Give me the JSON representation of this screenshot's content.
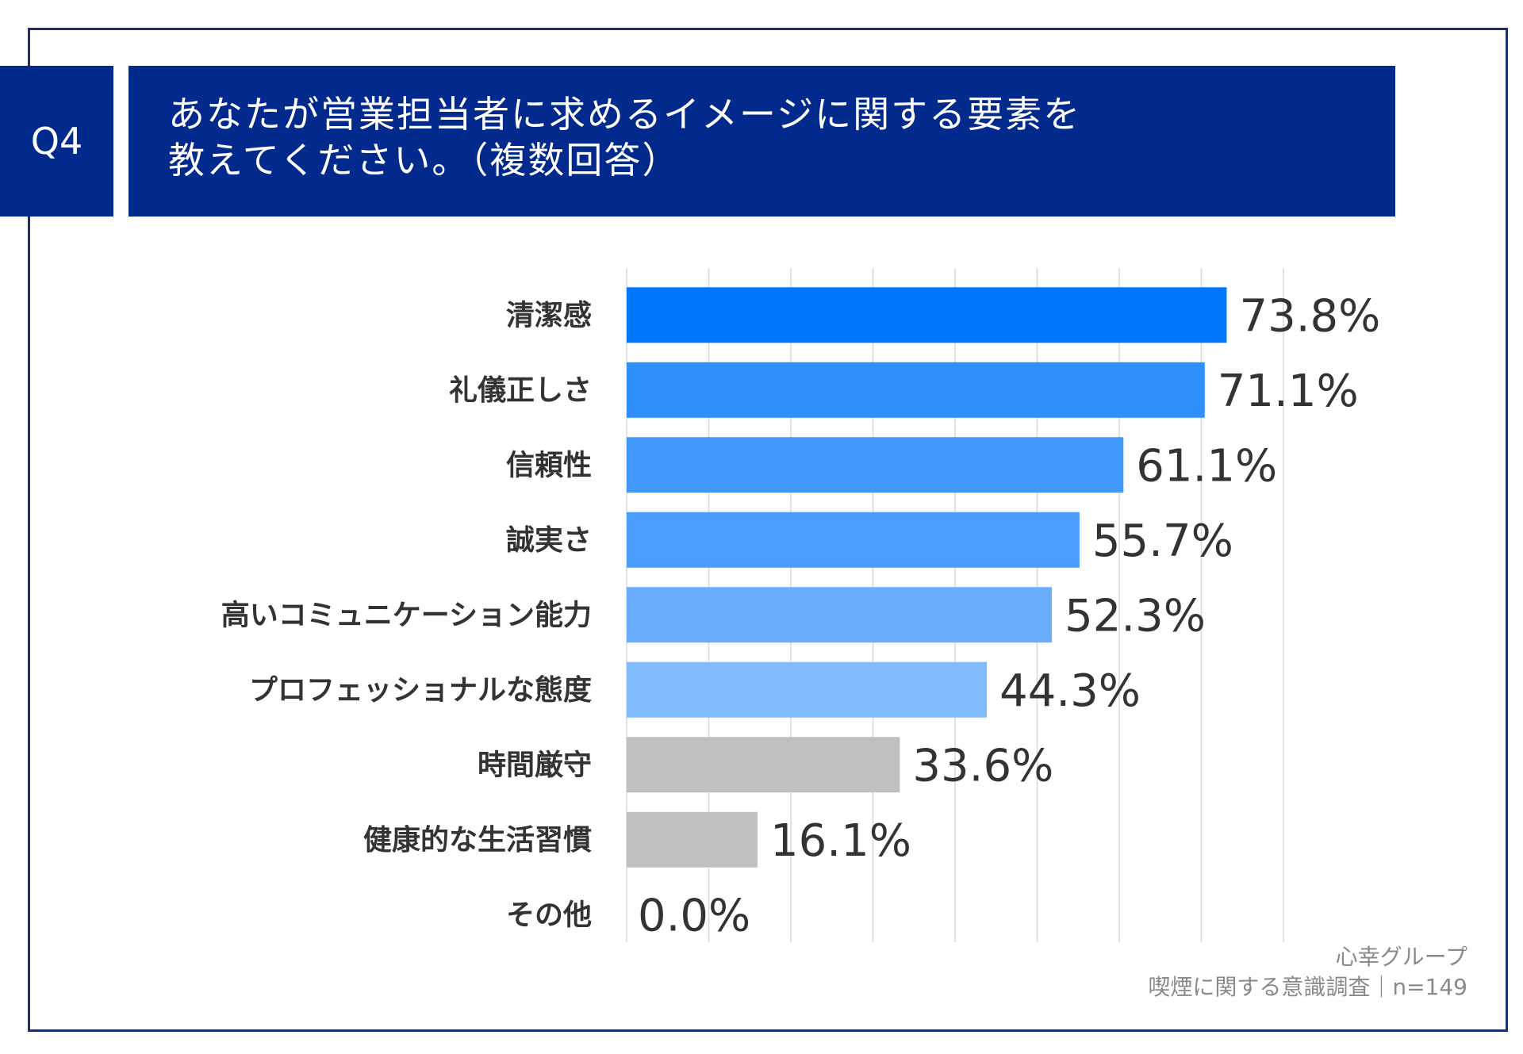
{
  "header": {
    "badge": "Q4",
    "title_line1": "あなたが営業担当者に求めるイメージに関する要素を",
    "title_line2": "教えてください。（複数回答）"
  },
  "footer": {
    "source_line1": "心幸グループ",
    "source_line2": "喫煙に関する意識調査｜n=149"
  },
  "chart_data": {
    "type": "bar",
    "orientation": "horizontal",
    "categories": [
      "清潔感",
      "礼儀正しさ",
      "信頼性",
      "誠実さ",
      "高いコミュニケーション能力",
      "プロフェッショナルな態度",
      "時間厳守",
      "健康的な生活習慣",
      "その他"
    ],
    "values": [
      73.8,
      71.1,
      61.1,
      55.7,
      52.3,
      44.3,
      33.6,
      16.1,
      0.0
    ],
    "value_labels": [
      "73.8%",
      "71.1%",
      "61.1%",
      "55.7%",
      "52.3%",
      "44.3%",
      "33.6%",
      "16.1%",
      "0.0%"
    ],
    "colors": [
      "#0077ff",
      "#2f8ffb",
      "#4198fb",
      "#4a9dfb",
      "#69adfc",
      "#80bbfd",
      "#c0c0c0",
      "#c0c0c0",
      "#c0c0c0"
    ],
    "xlim": [
      0,
      80
    ],
    "gridlines": true,
    "title": "",
    "xlabel": "",
    "ylabel": ""
  }
}
